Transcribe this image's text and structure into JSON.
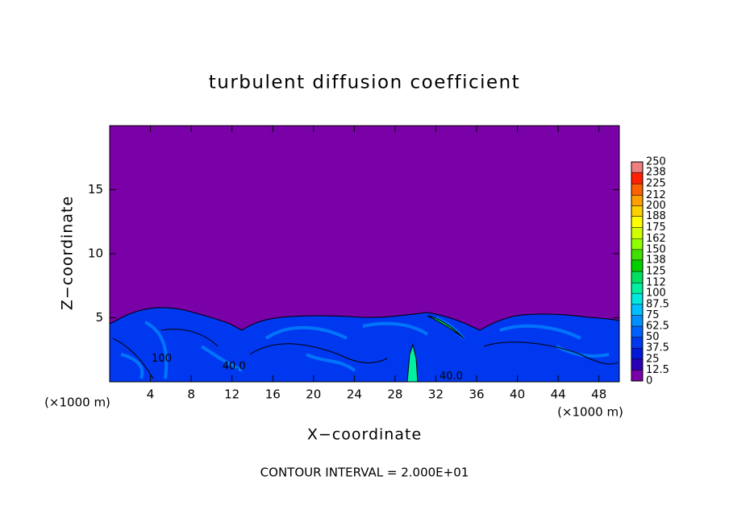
{
  "chart_data": {
    "type": "contour",
    "title": "turbulent diffusion coefficient",
    "xlabel": "X−coordinate",
    "ylabel": "Z−coordinate",
    "unit_label": "(×1000 m)",
    "note": "CONTOUR INTERVAL = 2.000E+01",
    "xlim": [
      0,
      50
    ],
    "ylim": [
      0,
      20
    ],
    "xticks": [
      4,
      8,
      12,
      16,
      20,
      24,
      28,
      32,
      36,
      40,
      44,
      48
    ],
    "yticks": [
      5,
      10,
      15
    ],
    "colorbar_levels": [
      0,
      12.5,
      25,
      37.5,
      50,
      62.5,
      75,
      87.5,
      100,
      112,
      125,
      138,
      150,
      162,
      175,
      188,
      200,
      212,
      225,
      238,
      250
    ],
    "colorbar_colors": [
      "#7a00a8",
      "#2a00b8",
      "#0018d8",
      "#0038f0",
      "#0060ff",
      "#0090ff",
      "#00c0ff",
      "#00e8e0",
      "#00f0a0",
      "#00e060",
      "#00d000",
      "#40e000",
      "#90ff00",
      "#d0ff00",
      "#ffff00",
      "#ffd000",
      "#ffa000",
      "#ff6000",
      "#ff2000",
      "#f08080"
    ],
    "contour_labels": [
      {
        "text": "100",
        "x": 5.1,
        "y": 1.8
      },
      {
        "text": "40.0",
        "x": 12.2,
        "y": 1.2
      },
      {
        "text": "40.0",
        "x": 33.5,
        "y": 0.4
      }
    ]
  }
}
